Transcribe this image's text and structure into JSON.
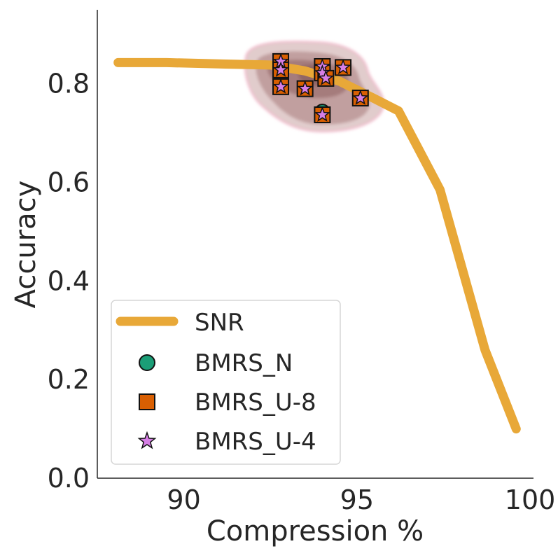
{
  "chart_data": {
    "type": "scatter",
    "title": "",
    "xlabel": "Compression %",
    "ylabel": "Accuracy",
    "xlim": [
      87.5,
      100.1
    ],
    "ylim": [
      0.0,
      0.95
    ],
    "x_ticks": [
      90,
      95,
      100
    ],
    "x_tick_labels": [
      "90",
      "95",
      "100"
    ],
    "y_ticks": [
      0.0,
      0.2,
      0.4,
      0.6,
      0.8
    ],
    "y_tick_labels": [
      "0.0",
      "0.2",
      "0.4",
      "0.6",
      "0.8"
    ],
    "grid": false,
    "legend_position": "bottom-left",
    "colors": {
      "snr": "#e8a838",
      "bmrs_n": "#1b9e77",
      "bmrs_u8": "#d95f02",
      "bmrs_u4": "#d77fe6",
      "density": "#8b4a4a",
      "density_edge": "#f0a0b8"
    },
    "series": [
      {
        "name": "SNR",
        "kind": "line",
        "x": [
          88.1,
          89.5,
          91.2,
          92.5,
          93.5,
          94.5,
          95.5,
          96.2,
          97.4,
          98.7,
          99.6
        ],
        "y": [
          0.843,
          0.843,
          0.84,
          0.838,
          0.826,
          0.805,
          0.77,
          0.745,
          0.585,
          0.26,
          0.1
        ]
      },
      {
        "name": "BMRS_N",
        "kind": "scatter",
        "marker": "circle",
        "x": [
          92.8,
          92.8,
          92.8,
          93.5,
          94.0,
          94.0,
          94.1,
          94.0,
          94.6,
          95.1
        ],
        "y": [
          0.845,
          0.828,
          0.794,
          0.79,
          0.835,
          0.822,
          0.811,
          0.744,
          0.833,
          0.771
        ]
      },
      {
        "name": "BMRS_U-8",
        "kind": "scatter",
        "marker": "square",
        "x": [
          92.8,
          92.8,
          92.8,
          93.5,
          94.0,
          94.0,
          94.1,
          94.0,
          94.6,
          95.1
        ],
        "y": [
          0.845,
          0.828,
          0.794,
          0.79,
          0.835,
          0.822,
          0.811,
          0.737,
          0.833,
          0.771
        ]
      },
      {
        "name": "BMRS_U-4",
        "kind": "scatter",
        "marker": "star",
        "x": [
          92.8,
          92.8,
          92.8,
          93.5,
          94.0,
          94.0,
          94.1,
          94.0,
          94.6,
          95.1
        ],
        "y": [
          0.845,
          0.828,
          0.794,
          0.79,
          0.835,
          0.822,
          0.811,
          0.737,
          0.833,
          0.771
        ]
      }
    ]
  }
}
